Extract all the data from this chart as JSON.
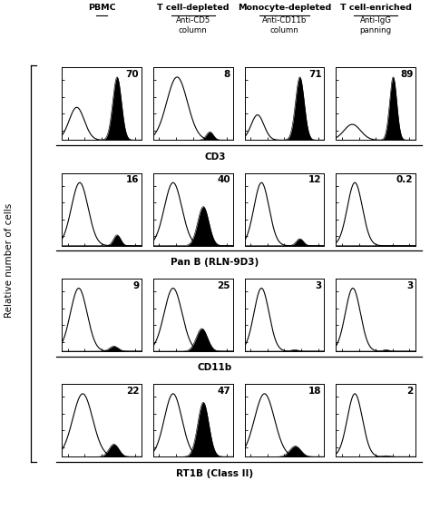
{
  "col_headers_top": [
    "PBMC",
    "T cell-depleted",
    "Monocyte-depleted",
    "T cell-enriched"
  ],
  "col_headers_sub": [
    "",
    "Anti-CD5\ncolumn",
    "Anti-CD11b\ncolumn",
    "Anti-IgG\npanning"
  ],
  "row_labels": [
    "CD3",
    "Pan B (RLN-9D3)",
    "CD11b",
    "RT1B (Class II)"
  ],
  "y_axis_label": "Relative number of cells",
  "percentages": [
    [
      "70",
      "8",
      "71",
      "89"
    ],
    [
      "16",
      "40",
      "12",
      "0.2"
    ],
    [
      "9",
      "25",
      "3",
      "3"
    ],
    [
      "22",
      "47",
      "18",
      "2"
    ]
  ],
  "fig_bg": "#ffffff",
  "line_color": "#000000",
  "fill_color": "#000000",
  "figsize": [
    4.74,
    5.73
  ],
  "dpi": 100
}
